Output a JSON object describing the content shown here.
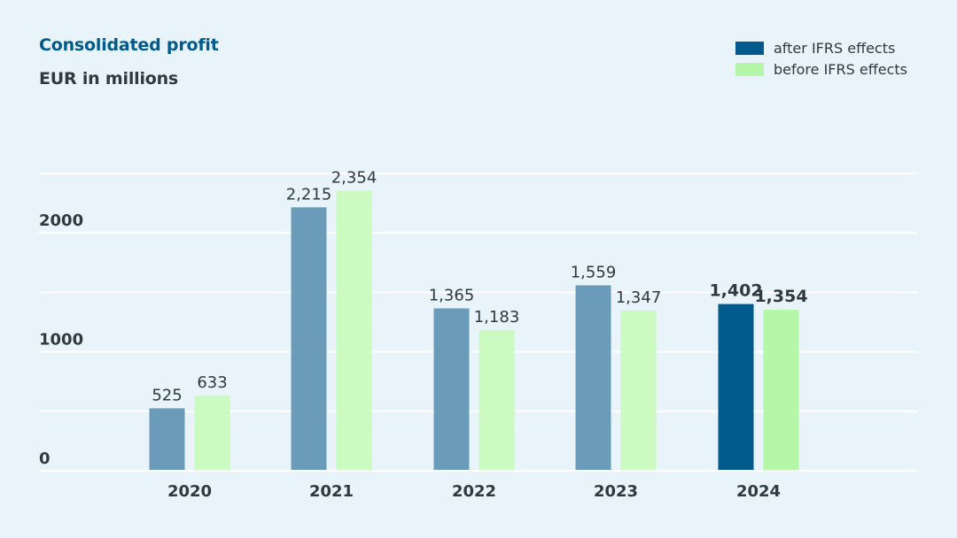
{
  "title": "Consolidated profit",
  "subtitle": "EUR in millions",
  "colors": {
    "background": "#e8f3fa",
    "after_ifrs": "#005a8c",
    "after_ifrs_prior": "#6a9cba",
    "before_ifrs": "#b5f7a8",
    "before_ifrs_prior": "#ccfbc2",
    "text": "#2f3a40",
    "title": "#005a8c",
    "grid": "#ffffff"
  },
  "chart_data": {
    "type": "bar",
    "title": "Consolidated profit",
    "ylabel": "EUR in millions",
    "xlabel": "",
    "categories": [
      "2020",
      "2021",
      "2022",
      "2023",
      "2024"
    ],
    "series": [
      {
        "name": "after IFRS effects",
        "values": [
          525,
          2215,
          1365,
          1559,
          1402
        ],
        "labels": [
          "525",
          "2,215",
          "1,365",
          "1,559",
          "1,402"
        ]
      },
      {
        "name": "before IFRS effects",
        "values": [
          633,
          2354,
          1183,
          1347,
          1354
        ],
        "labels": [
          "633",
          "2,354",
          "1,183",
          "1,347",
          "1,354"
        ]
      }
    ],
    "y_ticks": [
      "0",
      "1000",
      "2000"
    ],
    "y_tick_values": [
      0,
      1000,
      2000
    ],
    "ylim": [
      0,
      2500
    ],
    "grid": true,
    "legend_position": "top-right",
    "highlighted_category": "2024"
  }
}
